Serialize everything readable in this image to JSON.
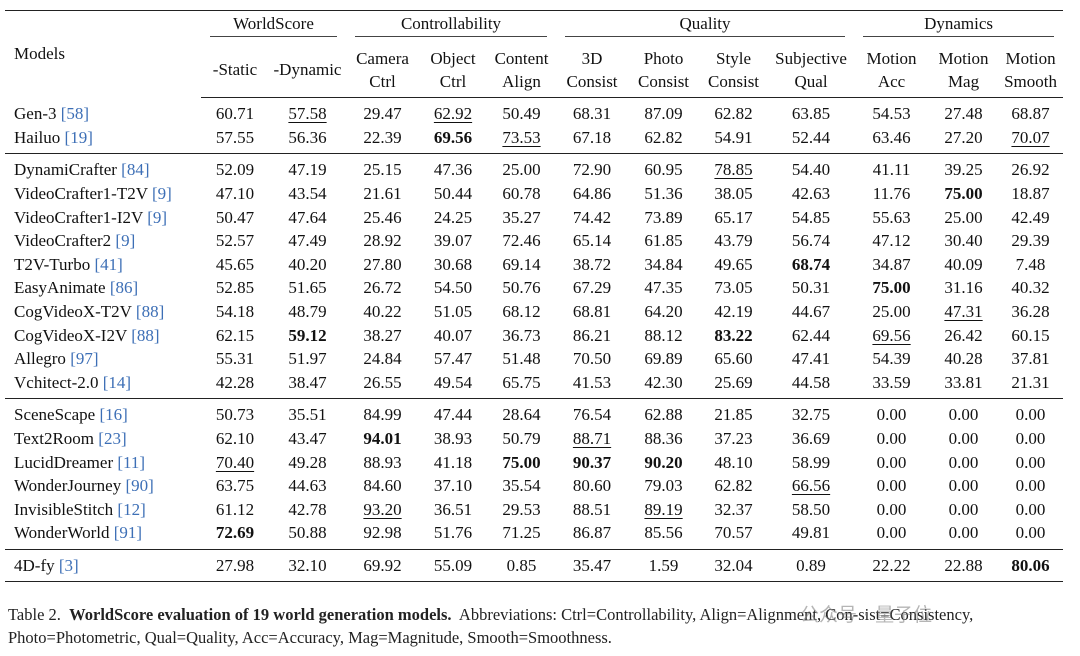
{
  "table": {
    "models_header": "Models",
    "groups": [
      {
        "label": "WorldScore",
        "columns": [
          [
            "-Static"
          ],
          [
            "-Dynamic"
          ]
        ]
      },
      {
        "label": "Controllability",
        "columns": [
          [
            "Camera",
            "Ctrl"
          ],
          [
            "Object",
            "Ctrl"
          ],
          [
            "Content",
            "Align"
          ]
        ]
      },
      {
        "label": "Quality",
        "columns": [
          [
            "3D",
            "Consist"
          ],
          [
            "Photo",
            "Consist"
          ],
          [
            "Style",
            "Consist"
          ],
          [
            "Subjective",
            "Qual"
          ]
        ]
      },
      {
        "label": "Dynamics",
        "columns": [
          [
            "Motion",
            "Acc"
          ],
          [
            "Motion",
            "Mag"
          ],
          [
            "Motion",
            "Smooth"
          ]
        ]
      }
    ],
    "sections": [
      [
        {
          "model": "Gen-3",
          "ref": "[58]",
          "values": [
            "60.71",
            "57.58",
            "29.47",
            "62.92",
            "50.49",
            "68.31",
            "87.09",
            "62.82",
            "63.85",
            "54.53",
            "27.48",
            "68.87"
          ],
          "underline": [
            1,
            3
          ]
        },
        {
          "model": "Hailuo",
          "ref": "[19]",
          "values": [
            "57.55",
            "56.36",
            "22.39",
            "69.56",
            "73.53",
            "67.18",
            "62.82",
            "54.91",
            "52.44",
            "63.46",
            "27.20",
            "70.07"
          ],
          "bold": [
            3
          ],
          "underline": [
            4,
            11
          ]
        }
      ],
      [
        {
          "model": "DynamiCrafter",
          "ref": "[84]",
          "values": [
            "52.09",
            "47.19",
            "25.15",
            "47.36",
            "25.00",
            "72.90",
            "60.95",
            "78.85",
            "54.40",
            "41.11",
            "39.25",
            "26.92"
          ],
          "underline": [
            7
          ]
        },
        {
          "model": "VideoCrafter1-T2V",
          "ref": "[9]",
          "values": [
            "47.10",
            "43.54",
            "21.61",
            "50.44",
            "60.78",
            "64.86",
            "51.36",
            "38.05",
            "42.63",
            "11.76",
            "75.00",
            "18.87"
          ],
          "bold": [
            10
          ]
        },
        {
          "model": "VideoCrafter1-I2V",
          "ref": "[9]",
          "values": [
            "50.47",
            "47.64",
            "25.46",
            "24.25",
            "35.27",
            "74.42",
            "73.89",
            "65.17",
            "54.85",
            "55.63",
            "25.00",
            "42.49"
          ]
        },
        {
          "model": "VideoCrafter2",
          "ref": "[9]",
          "values": [
            "52.57",
            "47.49",
            "28.92",
            "39.07",
            "72.46",
            "65.14",
            "61.85",
            "43.79",
            "56.74",
            "47.12",
            "30.40",
            "29.39"
          ]
        },
        {
          "model": "T2V-Turbo",
          "ref": "[41]",
          "values": [
            "45.65",
            "40.20",
            "27.80",
            "30.68",
            "69.14",
            "38.72",
            "34.84",
            "49.65",
            "68.74",
            "34.87",
            "40.09",
            "7.48"
          ],
          "bold": [
            8
          ]
        },
        {
          "model": "EasyAnimate",
          "ref": "[86]",
          "values": [
            "52.85",
            "51.65",
            "26.72",
            "54.50",
            "50.76",
            "67.29",
            "47.35",
            "73.05",
            "50.31",
            "75.00",
            "31.16",
            "40.32"
          ],
          "bold": [
            9
          ]
        },
        {
          "model": "CogVideoX-T2V",
          "ref": "[88]",
          "values": [
            "54.18",
            "48.79",
            "40.22",
            "51.05",
            "68.12",
            "68.81",
            "64.20",
            "42.19",
            "44.67",
            "25.00",
            "47.31",
            "36.28"
          ],
          "underline": [
            10
          ]
        },
        {
          "model": "CogVideoX-I2V",
          "ref": "[88]",
          "values": [
            "62.15",
            "59.12",
            "38.27",
            "40.07",
            "36.73",
            "86.21",
            "88.12",
            "83.22",
            "62.44",
            "69.56",
            "26.42",
            "60.15"
          ],
          "bold": [
            1,
            7
          ],
          "underline": [
            9
          ]
        },
        {
          "model": "Allegro",
          "ref": "[97]",
          "values": [
            "55.31",
            "51.97",
            "24.84",
            "57.47",
            "51.48",
            "70.50",
            "69.89",
            "65.60",
            "47.41",
            "54.39",
            "40.28",
            "37.81"
          ]
        },
        {
          "model": "Vchitect-2.0",
          "ref": "[14]",
          "values": [
            "42.28",
            "38.47",
            "26.55",
            "49.54",
            "65.75",
            "41.53",
            "42.30",
            "25.69",
            "44.58",
            "33.59",
            "33.81",
            "21.31"
          ]
        }
      ],
      [
        {
          "model": "SceneScape",
          "ref": "[16]",
          "values": [
            "50.73",
            "35.51",
            "84.99",
            "47.44",
            "28.64",
            "76.54",
            "62.88",
            "21.85",
            "32.75",
            "0.00",
            "0.00",
            "0.00"
          ]
        },
        {
          "model": "Text2Room",
          "ref": "[23]",
          "values": [
            "62.10",
            "43.47",
            "94.01",
            "38.93",
            "50.79",
            "88.71",
            "88.36",
            "37.23",
            "36.69",
            "0.00",
            "0.00",
            "0.00"
          ],
          "bold": [
            2
          ],
          "underline": [
            5
          ]
        },
        {
          "model": "LucidDreamer",
          "ref": "[11]",
          "values": [
            "70.40",
            "49.28",
            "88.93",
            "41.18",
            "75.00",
            "90.37",
            "90.20",
            "48.10",
            "58.99",
            "0.00",
            "0.00",
            "0.00"
          ],
          "bold": [
            4,
            5,
            6
          ],
          "underline": [
            0
          ]
        },
        {
          "model": "WonderJourney",
          "ref": "[90]",
          "values": [
            "63.75",
            "44.63",
            "84.60",
            "37.10",
            "35.54",
            "80.60",
            "79.03",
            "62.82",
            "66.56",
            "0.00",
            "0.00",
            "0.00"
          ],
          "underline": [
            8
          ]
        },
        {
          "model": "InvisibleStitch",
          "ref": "[12]",
          "values": [
            "61.12",
            "42.78",
            "93.20",
            "36.51",
            "29.53",
            "88.51",
            "89.19",
            "32.37",
            "58.50",
            "0.00",
            "0.00",
            "0.00"
          ],
          "underline": [
            2,
            6
          ]
        },
        {
          "model": "WonderWorld",
          "ref": "[91]",
          "values": [
            "72.69",
            "50.88",
            "92.98",
            "51.76",
            "71.25",
            "86.87",
            "85.56",
            "70.57",
            "49.81",
            "0.00",
            "0.00",
            "0.00"
          ],
          "bold": [
            0
          ]
        }
      ],
      [
        {
          "model": "4D-fy",
          "ref": "[3]",
          "values": [
            "27.98",
            "32.10",
            "69.92",
            "55.09",
            "0.85",
            "35.47",
            "1.59",
            "32.04",
            "0.89",
            "22.22",
            "22.88",
            "80.06"
          ],
          "bold": [
            11
          ]
        }
      ]
    ]
  },
  "caption": {
    "label": "Table 2.",
    "title": "WorldScore evaluation of 19 world generation models.",
    "text": "Abbreviations: Ctrl=Controllability, Align=Alignment, Con-sist=Consistency, Photo=Photometric, Qual=Quality, Acc=Accuracy, Mag=Magnitude, Smooth=Smoothness."
  },
  "watermark": "公众号 · 量子位"
}
